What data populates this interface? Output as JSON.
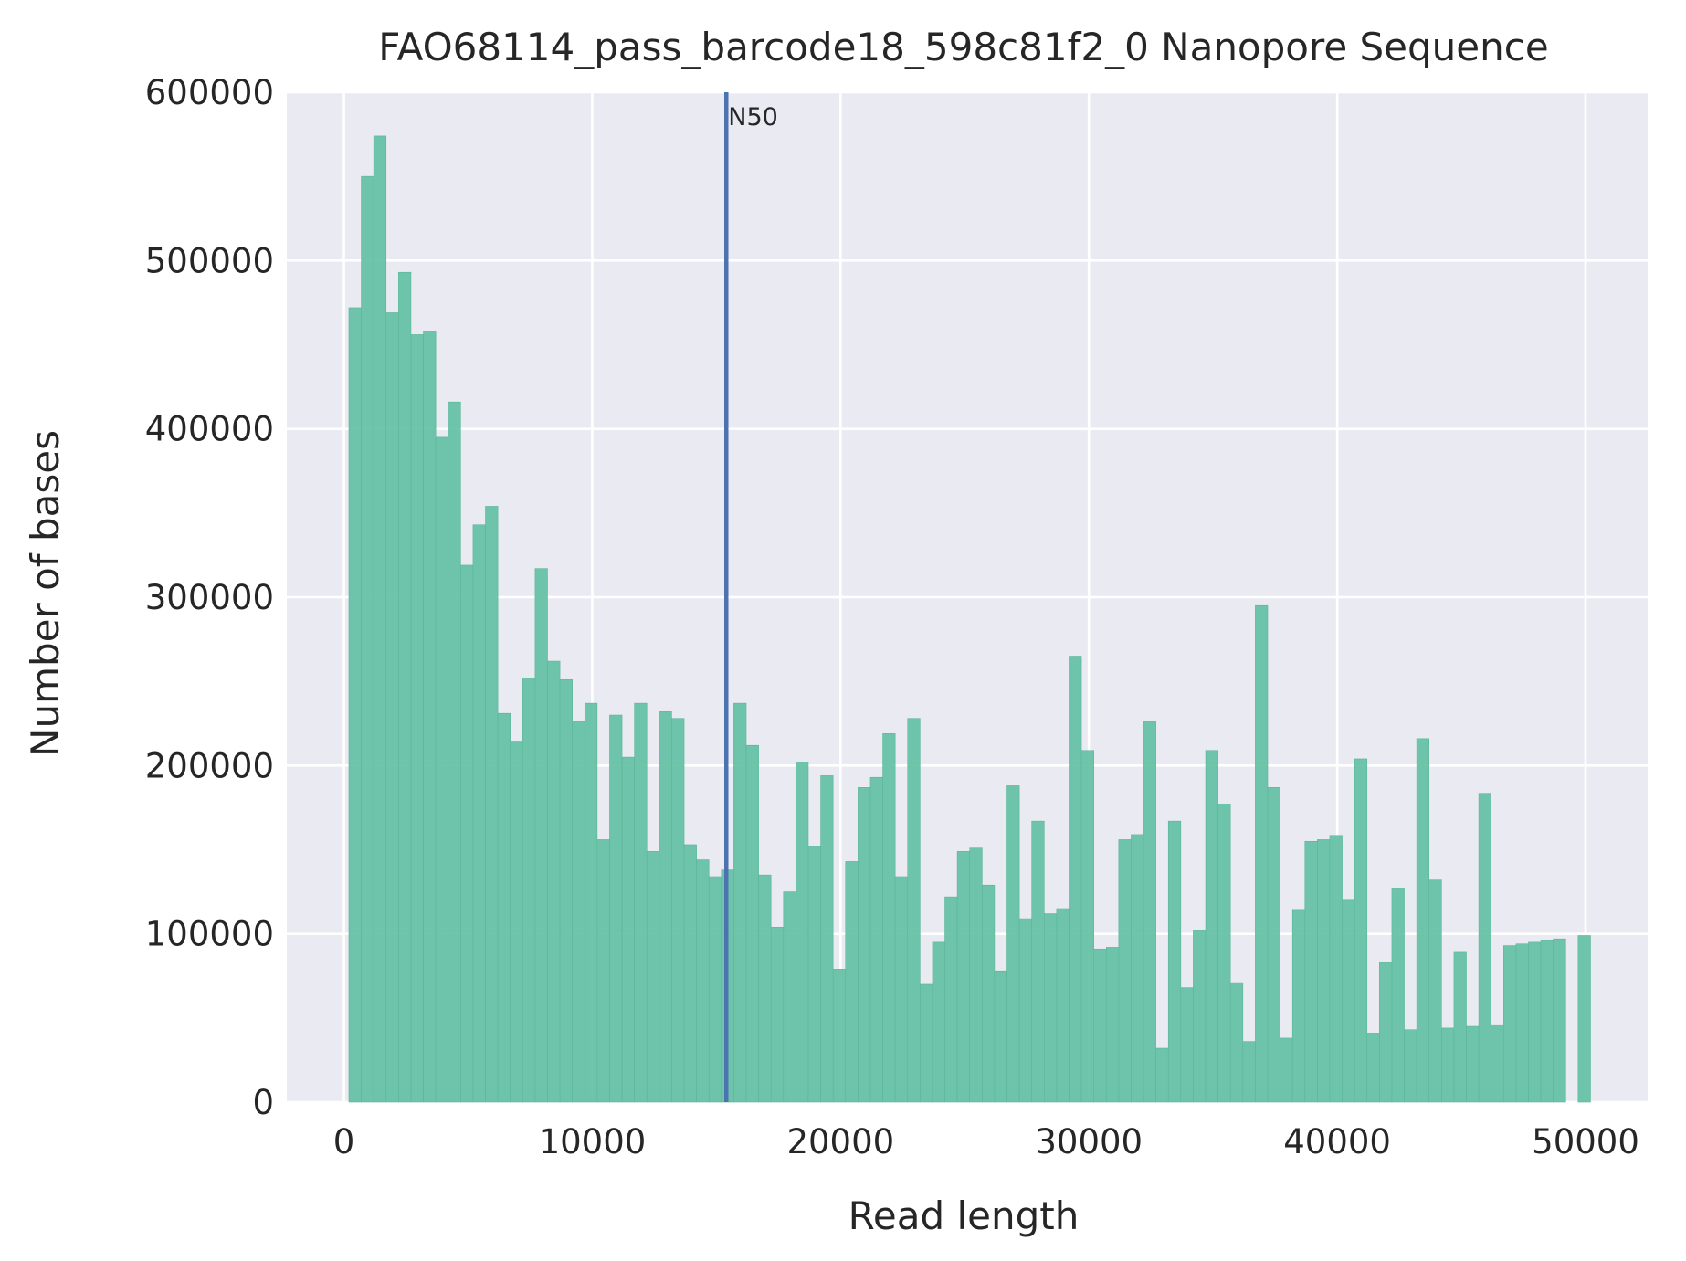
{
  "chart_data": {
    "type": "bar",
    "title": "FAO68114_pass_barcode18_598c81f2_0 Nanopore Sequence",
    "xlabel": "Read length",
    "ylabel": "Number of bases",
    "xlim": [
      -2300,
      52500
    ],
    "ylim": [
      0,
      600000
    ],
    "xticks": [
      0,
      10000,
      20000,
      30000,
      40000,
      50000
    ],
    "yticks": [
      0,
      100000,
      200000,
      300000,
      400000,
      500000,
      600000
    ],
    "grid": true,
    "bar_color": "#66c2a5",
    "background_color": "#eaeaf2",
    "bin_width": 500,
    "bins_start": 200,
    "values": [
      472000,
      550000,
      574000,
      469000,
      493000,
      456000,
      458000,
      395000,
      416000,
      319000,
      343000,
      354000,
      231000,
      214000,
      252000,
      317000,
      262000,
      251000,
      226000,
      237000,
      156000,
      230000,
      205000,
      237000,
      149000,
      232000,
      228000,
      153000,
      144000,
      134000,
      138000,
      237000,
      212000,
      135000,
      104000,
      125000,
      202000,
      152000,
      194000,
      79000,
      143000,
      187000,
      193000,
      219000,
      134000,
      228000,
      70000,
      95000,
      122000,
      149000,
      151000,
      129000,
      78000,
      188000,
      109000,
      167000,
      112000,
      115000,
      265000,
      209000,
      91000,
      92000,
      156000,
      159000,
      226000,
      32000,
      167000,
      68000,
      102000,
      209000,
      177000,
      71000,
      36000,
      295000,
      187000,
      38000,
      114000,
      155000,
      156000,
      158000,
      120000,
      204000,
      41000,
      83000,
      127000,
      43000,
      216000,
      132000,
      44000,
      89000,
      45000,
      183000,
      46000,
      93000,
      94000,
      95000,
      96000,
      97000,
      0,
      99000
    ],
    "annotations": [
      {
        "label": "N50",
        "x": 15400,
        "color": "#4c72b0"
      }
    ]
  }
}
